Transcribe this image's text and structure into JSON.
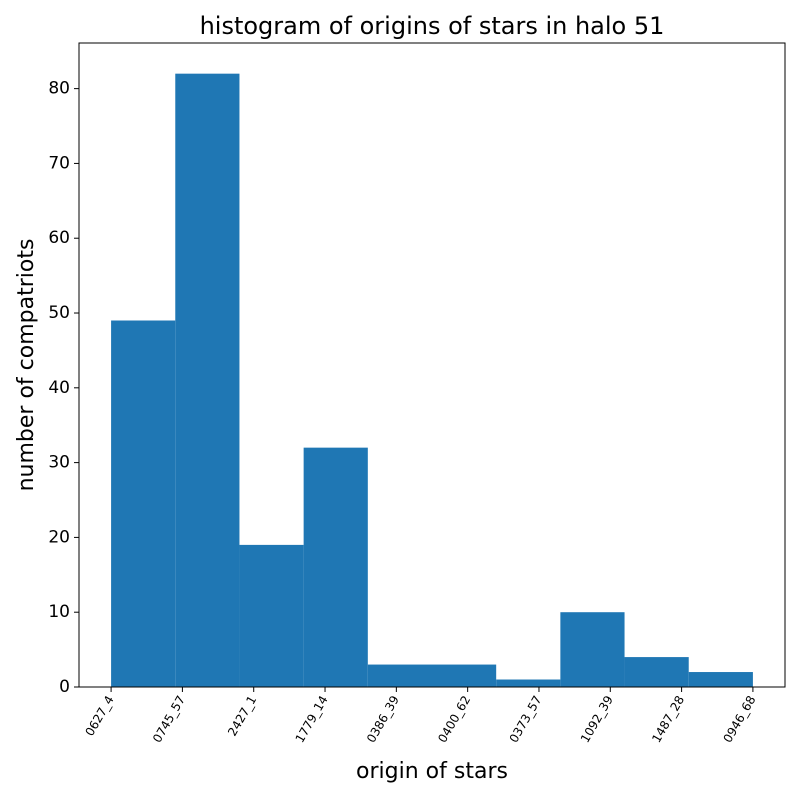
{
  "chart_data": {
    "type": "histogram",
    "title": "histogram of origins of stars in halo 51",
    "xlabel": "origin of stars",
    "ylabel": "number of compatriots",
    "bins": [
      0,
      0.9,
      1.8,
      2.7,
      3.6,
      4.5,
      5.4,
      6.3,
      7.2,
      8.1,
      9
    ],
    "counts": [
      49,
      82,
      19,
      32,
      3,
      3,
      1,
      10,
      4,
      2
    ],
    "color": "#1f77b4",
    "xlim": [
      -0.45,
      9.45
    ],
    "xticks": [
      {
        "value": 0,
        "label": "0627_4"
      },
      {
        "value": 1,
        "label": "0745_57"
      },
      {
        "value": 2,
        "label": "2427_1"
      },
      {
        "value": 3,
        "label": "1779_14"
      },
      {
        "value": 4,
        "label": "0386_39"
      },
      {
        "value": 5,
        "label": "0400_62"
      },
      {
        "value": 6,
        "label": "0373_57"
      },
      {
        "value": 7,
        "label": "1092_39"
      },
      {
        "value": 8,
        "label": "1487_28"
      },
      {
        "value": 9,
        "label": "0946_68"
      }
    ],
    "ylim": [
      0,
      86.1
    ],
    "yticks": [
      0,
      10,
      20,
      30,
      40,
      50,
      60,
      70,
      80
    ],
    "grid": false
  }
}
